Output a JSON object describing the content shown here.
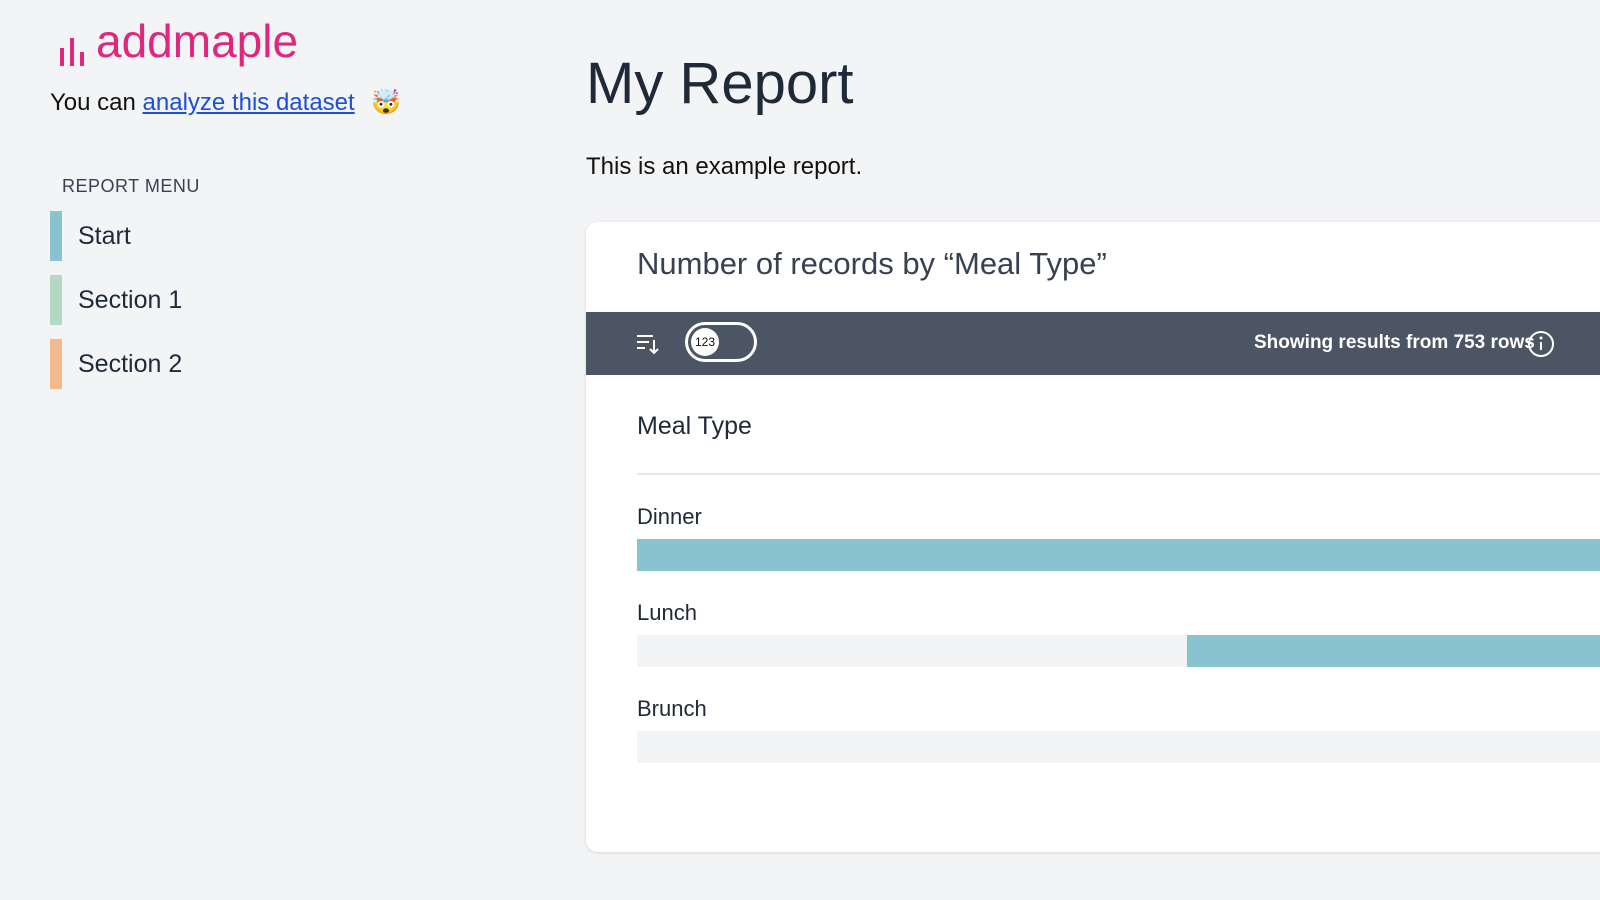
{
  "sidebar": {
    "logo": "addmaple",
    "intro": {
      "prefix": "You can",
      "link": "analyze this dataset",
      "emoji": "🤯"
    },
    "menu": {
      "heading": "REPORT MENU",
      "items": [
        "Start",
        "Section 1",
        "Section 2"
      ]
    }
  },
  "main": {
    "title": "My Report",
    "description": "This is an example report.",
    "card": {
      "title": "Number of records by “Meal Type”",
      "toggle": "123",
      "status": "Showing results from 753 rows",
      "column": "Meal Type",
      "rows": [
        "Dinner",
        "Lunch",
        "Brunch"
      ]
    }
  }
}
